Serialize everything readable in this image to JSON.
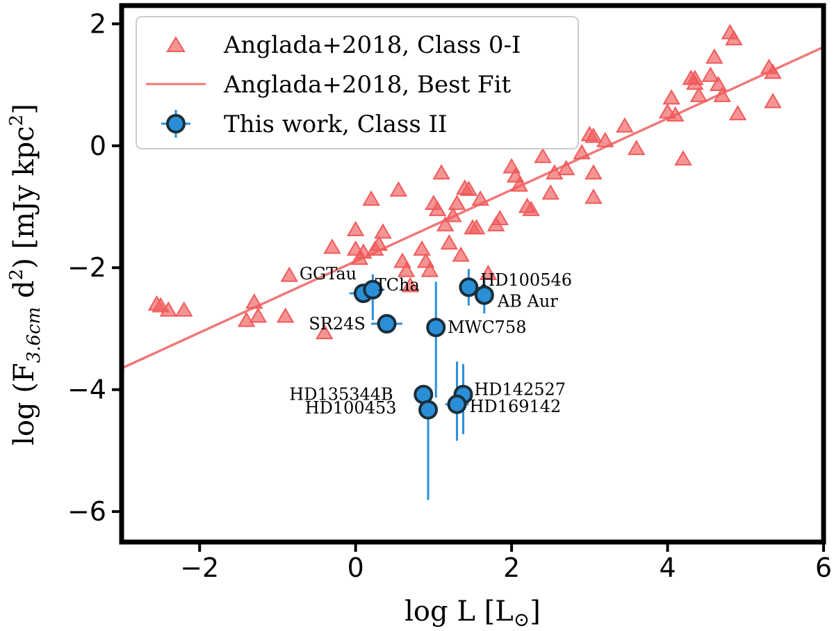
{
  "chart_data": {
    "type": "scatter",
    "xlabel": "log L [L",
    "xlabel_sub": "⊙",
    "xlabel_close": "]",
    "ylabel_prefix": "log (F",
    "ylabel_sub": "3.6cm",
    "ylabel_mid": " d",
    "ylabel_sup": "2",
    "ylabel_suffix": ") [mJy kpc",
    "ylabel_sup2": "2",
    "ylabel_close": "]",
    "xlim": [
      -3,
      6
    ],
    "ylim": [
      -6.5,
      2.3
    ],
    "xticks": [
      -2,
      0,
      2,
      4,
      6
    ],
    "yticks": [
      -6,
      -4,
      -2,
      0,
      2
    ],
    "colors": {
      "triangle": "#f05a5a",
      "fit": "#f07878",
      "point": "#2b8fd8",
      "errorbar": "#2b8fd8",
      "point_edge": "#1a2f3a"
    },
    "legend": {
      "position": "top-left",
      "entries": [
        "Anglada+2018, Class 0-I",
        "Anglada+2018, Best Fit",
        "This work, Class II"
      ]
    },
    "fit": {
      "x": [
        -3,
        6
      ],
      "y": [
        -3.65,
        1.62
      ]
    },
    "class0I": [
      [
        -2.55,
        -2.6
      ],
      [
        -2.5,
        -2.63
      ],
      [
        -2.4,
        -2.7
      ],
      [
        -2.2,
        -2.7
      ],
      [
        -1.4,
        -2.87
      ],
      [
        -1.3,
        -2.57
      ],
      [
        -1.25,
        -2.8
      ],
      [
        -0.9,
        -2.8
      ],
      [
        -0.85,
        -2.13
      ],
      [
        -0.4,
        -3.07
      ],
      [
        -0.3,
        -1.67
      ],
      [
        0.0,
        -1.38
      ],
      [
        0.0,
        -1.7
      ],
      [
        0.05,
        -1.85
      ],
      [
        0.1,
        -1.75
      ],
      [
        0.2,
        -0.88
      ],
      [
        0.25,
        -1.7
      ],
      [
        0.3,
        -1.62
      ],
      [
        0.35,
        -1.42
      ],
      [
        0.55,
        -0.73
      ],
      [
        0.6,
        -1.9
      ],
      [
        0.65,
        -2.05
      ],
      [
        0.7,
        -2.3
      ],
      [
        0.85,
        -1.7
      ],
      [
        0.9,
        -1.9
      ],
      [
        0.95,
        -2.05
      ],
      [
        1.0,
        -0.95
      ],
      [
        1.05,
        -1.05
      ],
      [
        1.1,
        -0.45
      ],
      [
        1.15,
        -1.3
      ],
      [
        1.2,
        -1.6
      ],
      [
        1.25,
        -1.15
      ],
      [
        1.3,
        -0.95
      ],
      [
        1.35,
        -1.8
      ],
      [
        1.4,
        -0.7
      ],
      [
        1.45,
        -0.72
      ],
      [
        1.5,
        -1.35
      ],
      [
        1.55,
        -1.35
      ],
      [
        1.6,
        -0.88
      ],
      [
        1.7,
        -2.1
      ],
      [
        1.8,
        -1.3
      ],
      [
        1.85,
        -1.2
      ],
      [
        2.0,
        -0.35
      ],
      [
        2.05,
        -0.5
      ],
      [
        2.1,
        -0.65
      ],
      [
        2.2,
        -1.0
      ],
      [
        2.25,
        -1.05
      ],
      [
        2.4,
        -0.18
      ],
      [
        2.5,
        -0.78
      ],
      [
        2.55,
        -0.45
      ],
      [
        2.7,
        -0.38
      ],
      [
        2.9,
        -0.12
      ],
      [
        3.0,
        0.18
      ],
      [
        3.05,
        0.15
      ],
      [
        3.05,
        -0.45
      ],
      [
        3.05,
        -0.85
      ],
      [
        3.2,
        0.08
      ],
      [
        3.45,
        0.32
      ],
      [
        3.6,
        -0.05
      ],
      [
        4.0,
        0.55
      ],
      [
        4.05,
        0.78
      ],
      [
        4.1,
        0.5
      ],
      [
        4.2,
        -0.22
      ],
      [
        4.3,
        1.1
      ],
      [
        4.35,
        1.1
      ],
      [
        4.35,
        1.02
      ],
      [
        4.4,
        0.82
      ],
      [
        4.55,
        1.15
      ],
      [
        4.6,
        1.45
      ],
      [
        4.65,
        1.0
      ],
      [
        4.7,
        0.82
      ],
      [
        4.8,
        1.85
      ],
      [
        4.85,
        1.75
      ],
      [
        4.9,
        0.52
      ],
      [
        5.3,
        1.28
      ],
      [
        5.35,
        1.2
      ],
      [
        5.35,
        0.72
      ]
    ],
    "class2": [
      {
        "name": "GGTau",
        "x": 0.1,
        "y": -2.42,
        "xerr": 0.18,
        "yerr": [
          0.0,
          0.0
        ],
        "lx": -0.72,
        "ly": -2.1,
        "anchor": "start"
      },
      {
        "name": "TCha",
        "x": 0.22,
        "y": -2.36,
        "xerr": 0.15,
        "yerr": [
          0.5,
          0.25
        ],
        "lx": 0.25,
        "ly": -2.28,
        "anchor": "start"
      },
      {
        "name": "SR24S",
        "x": 0.4,
        "y": -2.92,
        "xerr": 0.2,
        "yerr": [
          0.0,
          0.0
        ],
        "lx": -0.6,
        "ly": -2.92,
        "anchor": "start"
      },
      {
        "name": "MWC758",
        "x": 1.03,
        "y": -2.98,
        "xerr": 0.05,
        "yerr": [
          1.15,
          0.75
        ],
        "lx": 1.18,
        "ly": -2.98,
        "anchor": "start"
      },
      {
        "name": "HD100546",
        "x": 1.45,
        "y": -2.32,
        "xerr": 0.08,
        "yerr": [
          0.3,
          0.3
        ],
        "lx": 1.6,
        "ly": -2.2,
        "anchor": "start"
      },
      {
        "name": "AB Aur",
        "x": 1.65,
        "y": -2.45,
        "xerr": 0.06,
        "yerr": [
          0.3,
          0.3
        ],
        "lx": 1.82,
        "ly": -2.55,
        "anchor": "start"
      },
      {
        "name": "HD135344B",
        "x": 0.87,
        "y": -4.08,
        "xerr": 0.06,
        "yerr": [
          0.0,
          0.0
        ],
        "lx": -0.85,
        "ly": -4.08,
        "anchor": "start"
      },
      {
        "name": "HD100453",
        "x": 0.93,
        "y": -4.33,
        "xerr": 0.08,
        "yerr": [
          1.48,
          0.0
        ],
        "lx": -0.65,
        "ly": -4.3,
        "anchor": "start"
      },
      {
        "name": "HD142527",
        "x": 1.38,
        "y": -4.08,
        "xerr": 0.08,
        "yerr": [
          0.65,
          0.5
        ],
        "lx": 1.52,
        "ly": -4.0,
        "anchor": "start"
      },
      {
        "name": "HD169142",
        "x": 1.3,
        "y": -4.24,
        "xerr": 0.15,
        "yerr": [
          0.6,
          0.7
        ],
        "lx": 1.46,
        "ly": -4.28,
        "anchor": "start"
      }
    ]
  }
}
